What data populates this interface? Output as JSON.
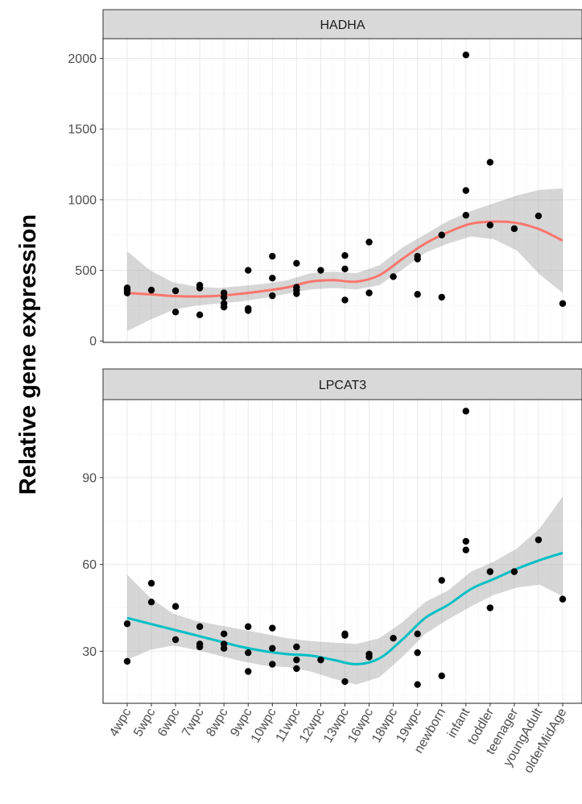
{
  "chart_data": {
    "type": "scatter",
    "ylabel": "Relative gene expression",
    "categories": [
      "4wpc",
      "5wpc",
      "6wpc",
      "7wpc",
      "8wpc",
      "9wpc",
      "10wpc",
      "11wpc",
      "12wpc",
      "13wpc",
      "16wpc",
      "18wpc",
      "19wpc",
      "newborn",
      "infant",
      "toddler",
      "teenager",
      "youngAdult",
      "olderMidAge"
    ],
    "grid": true,
    "legend": "none",
    "panels": [
      {
        "title": "HADHA",
        "ylim": [
          -10,
          2140
        ],
        "yticks": [
          0,
          500,
          1000,
          1500,
          2000
        ],
        "trend_color": "#F8766D",
        "points": [
          [
            "4wpc",
            375
          ],
          [
            "4wpc",
            360
          ],
          [
            "4wpc",
            340
          ],
          [
            "5wpc",
            360
          ],
          [
            "6wpc",
            355
          ],
          [
            "6wpc",
            205
          ],
          [
            "7wpc",
            395
          ],
          [
            "7wpc",
            375
          ],
          [
            "7wpc",
            185
          ],
          [
            "8wpc",
            340
          ],
          [
            "8wpc",
            310
          ],
          [
            "8wpc",
            265
          ],
          [
            "8wpc",
            240
          ],
          [
            "9wpc",
            500
          ],
          [
            "9wpc",
            230
          ],
          [
            "9wpc",
            215
          ],
          [
            "10wpc",
            600
          ],
          [
            "10wpc",
            445
          ],
          [
            "10wpc",
            320
          ],
          [
            "11wpc",
            550
          ],
          [
            "11wpc",
            380
          ],
          [
            "11wpc",
            360
          ],
          [
            "11wpc",
            335
          ],
          [
            "12wpc",
            500
          ],
          [
            "13wpc",
            605
          ],
          [
            "13wpc",
            510
          ],
          [
            "13wpc",
            290
          ],
          [
            "16wpc",
            700
          ],
          [
            "16wpc",
            340
          ],
          [
            "18wpc",
            455
          ],
          [
            "19wpc",
            600
          ],
          [
            "19wpc",
            580
          ],
          [
            "19wpc",
            330
          ],
          [
            "newborn",
            750
          ],
          [
            "newborn",
            310
          ],
          [
            "infant",
            2025
          ],
          [
            "infant",
            1065
          ],
          [
            "infant",
            890
          ],
          [
            "toddler",
            1265
          ],
          [
            "toddler",
            820
          ],
          [
            "teenager",
            795
          ],
          [
            "youngAdult",
            885
          ],
          [
            "olderMidAge",
            265
          ]
        ],
        "trend": [
          340,
          330,
          318,
          315,
          320,
          335,
          355,
          380,
          420,
          430,
          420,
          465,
          580,
          690,
          770,
          830,
          845,
          835,
          790,
          710
        ],
        "ribbon_low": [
          70,
          150,
          220,
          250,
          265,
          280,
          305,
          335,
          365,
          375,
          365,
          395,
          505,
          625,
          690,
          740,
          720,
          640,
          470,
          340
        ],
        "ribbon_high": [
          635,
          500,
          415,
          385,
          375,
          390,
          405,
          430,
          480,
          490,
          480,
          535,
          660,
          755,
          850,
          920,
          975,
          1030,
          1070,
          1080
        ]
      },
      {
        "title": "LPCAT3",
        "ylim": [
          12,
          117
        ],
        "yticks": [
          30,
          60,
          90
        ],
        "trend_color": "#00BFC4",
        "points": [
          [
            "4wpc",
            39.5
          ],
          [
            "4wpc",
            26.5
          ],
          [
            "5wpc",
            53.5
          ],
          [
            "5wpc",
            47
          ],
          [
            "6wpc",
            45.5
          ],
          [
            "6wpc",
            34
          ],
          [
            "7wpc",
            38.5
          ],
          [
            "7wpc",
            32.5
          ],
          [
            "7wpc",
            31.5
          ],
          [
            "8wpc",
            36
          ],
          [
            "8wpc",
            32.5
          ],
          [
            "8wpc",
            31
          ],
          [
            "9wpc",
            38.5
          ],
          [
            "9wpc",
            29.5
          ],
          [
            "9wpc",
            23
          ],
          [
            "10wpc",
            38
          ],
          [
            "10wpc",
            31
          ],
          [
            "10wpc",
            25.5
          ],
          [
            "11wpc",
            31.5
          ],
          [
            "11wpc",
            27
          ],
          [
            "11wpc",
            24
          ],
          [
            "12wpc",
            27
          ],
          [
            "13wpc",
            36
          ],
          [
            "13wpc",
            35.5
          ],
          [
            "13wpc",
            19.5
          ],
          [
            "16wpc",
            29
          ],
          [
            "16wpc",
            28
          ],
          [
            "18wpc",
            34.5
          ],
          [
            "19wpc",
            36
          ],
          [
            "19wpc",
            29.5
          ],
          [
            "19wpc",
            18.5
          ],
          [
            "newborn",
            54.5
          ],
          [
            "newborn",
            21.5
          ],
          [
            "infant",
            113
          ],
          [
            "infant",
            68
          ],
          [
            "infant",
            65
          ],
          [
            "toddler",
            57.5
          ],
          [
            "toddler",
            45
          ],
          [
            "teenager",
            57.5
          ],
          [
            "youngAdult",
            68.5
          ],
          [
            "olderMidAge",
            48
          ]
        ],
        "trend": [
          41.5,
          39.5,
          37.5,
          35.5,
          33.5,
          31.5,
          30,
          29,
          28.5,
          27,
          25.5,
          27.5,
          34,
          41.5,
          46,
          51.5,
          55,
          58.5,
          61.5,
          64
        ],
        "ribbon_low": [
          27,
          30.5,
          32,
          30.5,
          28.5,
          26.5,
          25,
          24.5,
          23,
          20.5,
          18.5,
          21,
          28,
          36,
          41,
          45.5,
          49.5,
          52,
          53,
          49
        ],
        "ribbon_high": [
          56.5,
          48.5,
          43,
          40.5,
          39,
          37.5,
          36,
          34.5,
          33.5,
          33,
          32.5,
          34.5,
          40,
          47,
          51,
          57.5,
          61,
          65.5,
          72.5,
          83.5
        ]
      }
    ]
  }
}
